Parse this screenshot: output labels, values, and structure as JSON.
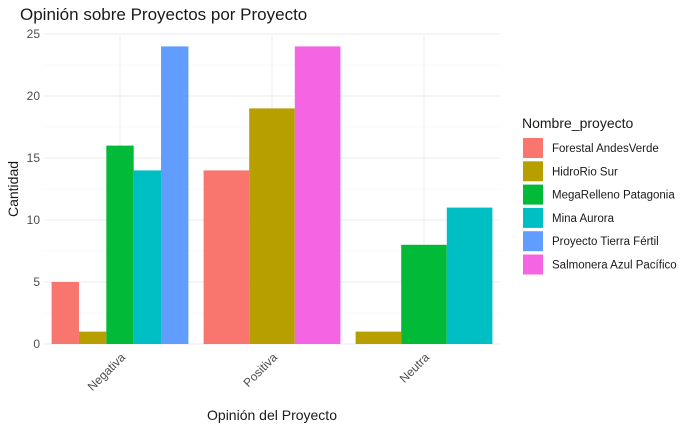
{
  "chart_data": {
    "type": "bar",
    "title": "Opinión sobre Proyectos por Proyecto",
    "xlabel": "Opinión del Proyecto",
    "ylabel": "Cantidad",
    "ylim": [
      0,
      25
    ],
    "yticks": [
      0,
      5,
      10,
      15,
      20,
      25
    ],
    "grid": true,
    "legend_position": "right",
    "legend_title": "Nombre_proyecto",
    "categories": [
      "Negativa",
      "Positiva",
      "Neutra"
    ],
    "series": [
      {
        "name": "Forestal AndesVerde",
        "color": "#F8766D",
        "values": [
          5,
          14,
          null
        ]
      },
      {
        "name": "HidroRio Sur",
        "color": "#B79F00",
        "values": [
          1,
          19,
          1
        ]
      },
      {
        "name": "MegaRelleno Patagonia",
        "color": "#00BA38",
        "values": [
          16,
          null,
          8
        ]
      },
      {
        "name": "Mina Aurora",
        "color": "#00BFC4",
        "values": [
          14,
          null,
          11
        ]
      },
      {
        "name": "Proyecto Tierra Fértil",
        "color": "#619CFF",
        "values": [
          24,
          null,
          null
        ]
      },
      {
        "name": "Salmonera Azul Pacífico",
        "color": "#F564E3",
        "values": [
          null,
          24,
          null
        ]
      }
    ]
  }
}
